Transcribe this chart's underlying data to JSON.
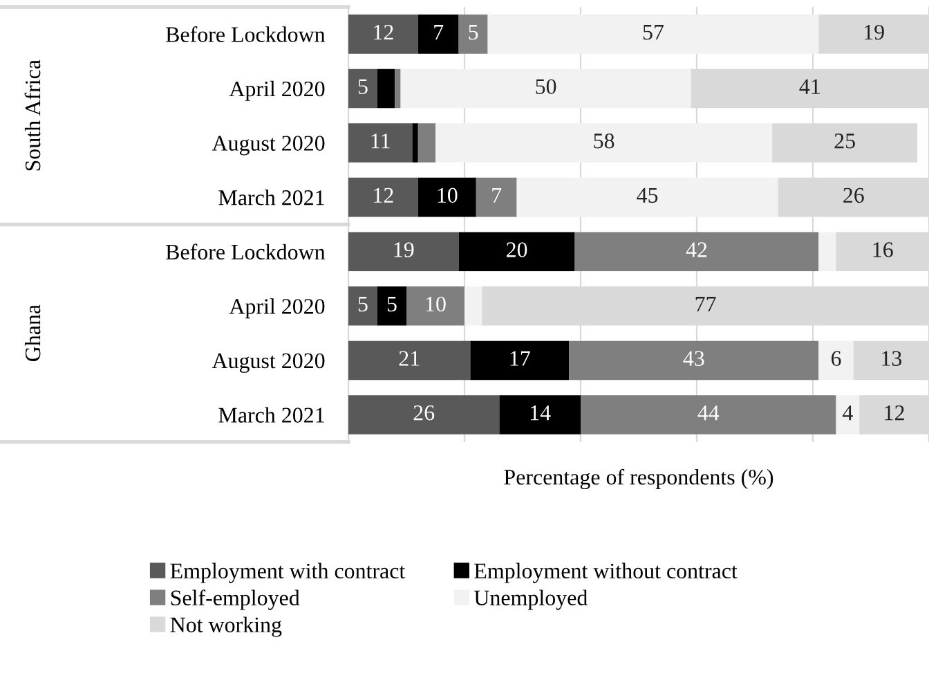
{
  "chart_data": {
    "type": "bar",
    "orientation": "horizontal",
    "stacked": true,
    "xlabel": "Percentage of respondents (%)",
    "annotations": [
      "South Africa",
      "Ghana"
    ],
    "categories": [
      "Before Lockdown",
      "April 2020",
      "August 2020",
      "March 2021",
      "Before Lockdown",
      "April 2020",
      "August 2020",
      "March 2021"
    ],
    "xlim": [
      0,
      100
    ],
    "xticks": [
      {
        "value": 0,
        "label": null
      },
      {
        "value": 20,
        "label": null
      },
      {
        "value": 40,
        "label": null
      },
      {
        "value": 60,
        "label": null
      },
      {
        "value": 80,
        "label": null
      },
      {
        "value": 100,
        "label": null
      }
    ],
    "grid": "x",
    "legend": "bottom",
    "tick_labels": "y",
    "series": [
      {
        "name": "Employment with contract",
        "color": "#595959",
        "values": [
          12,
          5,
          11,
          12,
          19,
          5,
          21,
          26
        ],
        "value_labels": [
          "12",
          "5",
          "11",
          "12",
          "19",
          "5",
          "21",
          "26"
        ]
      },
      {
        "name": "Employment without contract",
        "color": "#000000",
        "values": [
          7,
          3,
          1,
          10,
          20,
          5,
          17,
          14
        ],
        "value_labels": [
          "7",
          null,
          null,
          "10",
          "20",
          "5",
          "17",
          "14"
        ]
      },
      {
        "name": "Self-employed",
        "color": "#7f7f7f",
        "values": [
          5,
          1,
          3,
          7,
          42,
          10,
          43,
          44
        ],
        "value_labels": [
          "5",
          null,
          null,
          "7",
          "42",
          "10",
          "43",
          "44"
        ]
      },
      {
        "name": "Unemployed",
        "color": "#f2f2f2",
        "values": [
          57,
          50,
          58,
          45,
          3,
          3,
          6,
          4
        ],
        "value_labels": [
          "57",
          "50",
          "58",
          "45",
          null,
          null,
          "6",
          "4"
        ]
      },
      {
        "name": "Not working",
        "color": "#d9d9d9",
        "values": [
          19,
          41,
          25,
          26,
          16,
          77,
          13,
          12
        ],
        "value_labels": [
          "19",
          "41",
          "25",
          "26",
          "16",
          "77",
          "13",
          "12"
        ]
      }
    ]
  }
}
